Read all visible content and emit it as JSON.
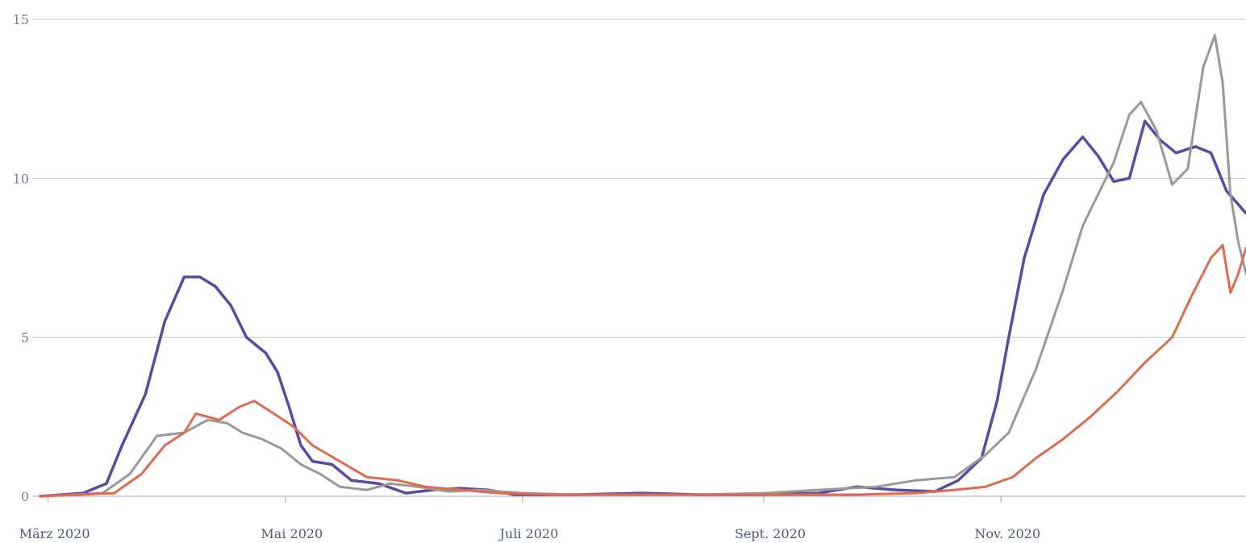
{
  "chart_data": {
    "type": "line",
    "title": "",
    "xlabel": "",
    "ylabel": "",
    "ylim": [
      0,
      15
    ],
    "yticks": [
      "0",
      "5",
      "10",
      "15"
    ],
    "ytick_values": [
      0,
      5,
      10,
      15
    ],
    "xlim": [
      "2020-02-28",
      "2021-01-03"
    ],
    "xticks": [
      {
        "label": "März 2020",
        "date": "2020-03-01"
      },
      {
        "label": "Mai 2020",
        "date": "2020-05-01"
      },
      {
        "label": "Juli 2020",
        "date": "2020-07-01"
      },
      {
        "label": "Sept. 2020",
        "date": "2020-09-01"
      },
      {
        "label": "Nov. 2020",
        "date": "2020-11-01"
      }
    ],
    "grid": true,
    "legend": "none",
    "series": [
      {
        "color": "#5a4aa6",
        "points": [
          [
            "2020-02-28",
            0.0
          ],
          [
            "2020-03-10",
            0.1
          ],
          [
            "2020-03-16",
            0.4
          ],
          [
            "2020-03-20",
            1.6
          ],
          [
            "2020-03-26",
            3.2
          ],
          [
            "2020-03-31",
            5.5
          ],
          [
            "2020-04-05",
            6.9
          ],
          [
            "2020-04-09",
            6.9
          ],
          [
            "2020-04-13",
            6.6
          ],
          [
            "2020-04-17",
            6.0
          ],
          [
            "2020-04-21",
            5.0
          ],
          [
            "2020-04-26",
            4.5
          ],
          [
            "2020-04-29",
            3.9
          ],
          [
            "2020-05-02",
            2.8
          ],
          [
            "2020-05-05",
            1.6
          ],
          [
            "2020-05-08",
            1.1
          ],
          [
            "2020-05-13",
            1.0
          ],
          [
            "2020-05-18",
            0.5
          ],
          [
            "2020-05-25",
            0.4
          ],
          [
            "2020-06-01",
            0.1
          ],
          [
            "2020-06-08",
            0.2
          ],
          [
            "2020-06-15",
            0.25
          ],
          [
            "2020-06-22",
            0.2
          ],
          [
            "2020-06-29",
            0.05
          ],
          [
            "2020-07-15",
            0.05
          ],
          [
            "2020-08-01",
            0.1
          ],
          [
            "2020-08-15",
            0.05
          ],
          [
            "2020-08-31",
            0.05
          ],
          [
            "2020-09-15",
            0.1
          ],
          [
            "2020-09-25",
            0.3
          ],
          [
            "2020-10-05",
            0.2
          ],
          [
            "2020-10-15",
            0.15
          ],
          [
            "2020-10-21",
            0.5
          ],
          [
            "2020-10-27",
            1.2
          ],
          [
            "2020-10-31",
            3.0
          ],
          [
            "2020-11-03",
            5.0
          ],
          [
            "2020-11-07",
            7.5
          ],
          [
            "2020-11-12",
            9.5
          ],
          [
            "2020-11-17",
            10.6
          ],
          [
            "2020-11-22",
            11.3
          ],
          [
            "2020-11-26",
            10.7
          ],
          [
            "2020-11-30",
            9.9
          ],
          [
            "2020-12-04",
            10.0
          ],
          [
            "2020-12-08",
            11.8
          ],
          [
            "2020-12-12",
            11.2
          ],
          [
            "2020-12-16",
            10.8
          ],
          [
            "2020-12-21",
            11.0
          ],
          [
            "2020-12-25",
            10.8
          ],
          [
            "2020-12-29",
            9.6
          ],
          [
            "2021-01-03",
            8.9
          ]
        ]
      },
      {
        "color": "#999999",
        "points": [
          [
            "2020-02-28",
            0.0
          ],
          [
            "2020-03-15",
            0.1
          ],
          [
            "2020-03-22",
            0.7
          ],
          [
            "2020-03-29",
            1.9
          ],
          [
            "2020-04-05",
            2.0
          ],
          [
            "2020-04-11",
            2.4
          ],
          [
            "2020-04-16",
            2.3
          ],
          [
            "2020-04-20",
            2.0
          ],
          [
            "2020-04-25",
            1.8
          ],
          [
            "2020-04-30",
            1.5
          ],
          [
            "2020-05-05",
            1.0
          ],
          [
            "2020-05-10",
            0.7
          ],
          [
            "2020-05-15",
            0.3
          ],
          [
            "2020-05-22",
            0.2
          ],
          [
            "2020-05-28",
            0.4
          ],
          [
            "2020-06-04",
            0.3
          ],
          [
            "2020-06-12",
            0.15
          ],
          [
            "2020-06-20",
            0.2
          ],
          [
            "2020-07-01",
            0.1
          ],
          [
            "2020-07-15",
            0.05
          ],
          [
            "2020-08-01",
            0.05
          ],
          [
            "2020-08-15",
            0.05
          ],
          [
            "2020-09-01",
            0.1
          ],
          [
            "2020-09-15",
            0.2
          ],
          [
            "2020-09-30",
            0.3
          ],
          [
            "2020-10-10",
            0.5
          ],
          [
            "2020-10-20",
            0.6
          ],
          [
            "2020-10-28",
            1.3
          ],
          [
            "2020-11-03",
            2.0
          ],
          [
            "2020-11-10",
            4.0
          ],
          [
            "2020-11-17",
            6.5
          ],
          [
            "2020-11-22",
            8.5
          ],
          [
            "2020-11-26",
            9.5
          ],
          [
            "2020-11-30",
            10.5
          ],
          [
            "2020-12-04",
            12.0
          ],
          [
            "2020-12-07",
            12.4
          ],
          [
            "2020-12-11",
            11.5
          ],
          [
            "2020-12-15",
            9.8
          ],
          [
            "2020-12-19",
            10.3
          ],
          [
            "2020-12-23",
            13.5
          ],
          [
            "2020-12-26",
            14.5
          ],
          [
            "2020-12-28",
            13.0
          ],
          [
            "2020-12-30",
            9.5
          ],
          [
            "2021-01-01",
            8.0
          ],
          [
            "2021-01-03",
            7.0
          ]
        ]
      },
      {
        "color": "#e06b4c",
        "points": [
          [
            "2020-02-28",
            0.0
          ],
          [
            "2020-03-18",
            0.1
          ],
          [
            "2020-03-25",
            0.7
          ],
          [
            "2020-03-31",
            1.6
          ],
          [
            "2020-04-05",
            2.0
          ],
          [
            "2020-04-08",
            2.6
          ],
          [
            "2020-04-14",
            2.4
          ],
          [
            "2020-04-19",
            2.8
          ],
          [
            "2020-04-23",
            3.0
          ],
          [
            "2020-04-28",
            2.6
          ],
          [
            "2020-05-03",
            2.2
          ],
          [
            "2020-05-08",
            1.6
          ],
          [
            "2020-05-15",
            1.1
          ],
          [
            "2020-05-22",
            0.6
          ],
          [
            "2020-05-30",
            0.5
          ],
          [
            "2020-06-06",
            0.3
          ],
          [
            "2020-06-15",
            0.2
          ],
          [
            "2020-06-25",
            0.1
          ],
          [
            "2020-07-10",
            0.05
          ],
          [
            "2020-08-01",
            0.05
          ],
          [
            "2020-08-20",
            0.05
          ],
          [
            "2020-09-10",
            0.05
          ],
          [
            "2020-09-25",
            0.05
          ],
          [
            "2020-10-10",
            0.1
          ],
          [
            "2020-10-20",
            0.2
          ],
          [
            "2020-10-28",
            0.3
          ],
          [
            "2020-11-04",
            0.6
          ],
          [
            "2020-11-10",
            1.2
          ],
          [
            "2020-11-17",
            1.8
          ],
          [
            "2020-11-24",
            2.5
          ],
          [
            "2020-12-01",
            3.3
          ],
          [
            "2020-12-08",
            4.2
          ],
          [
            "2020-12-15",
            5.0
          ],
          [
            "2020-12-20",
            6.3
          ],
          [
            "2020-12-25",
            7.5
          ],
          [
            "2020-12-28",
            7.9
          ],
          [
            "2020-12-30",
            6.4
          ],
          [
            "2021-01-01",
            7.0
          ],
          [
            "2021-01-03",
            7.8
          ]
        ]
      }
    ]
  }
}
